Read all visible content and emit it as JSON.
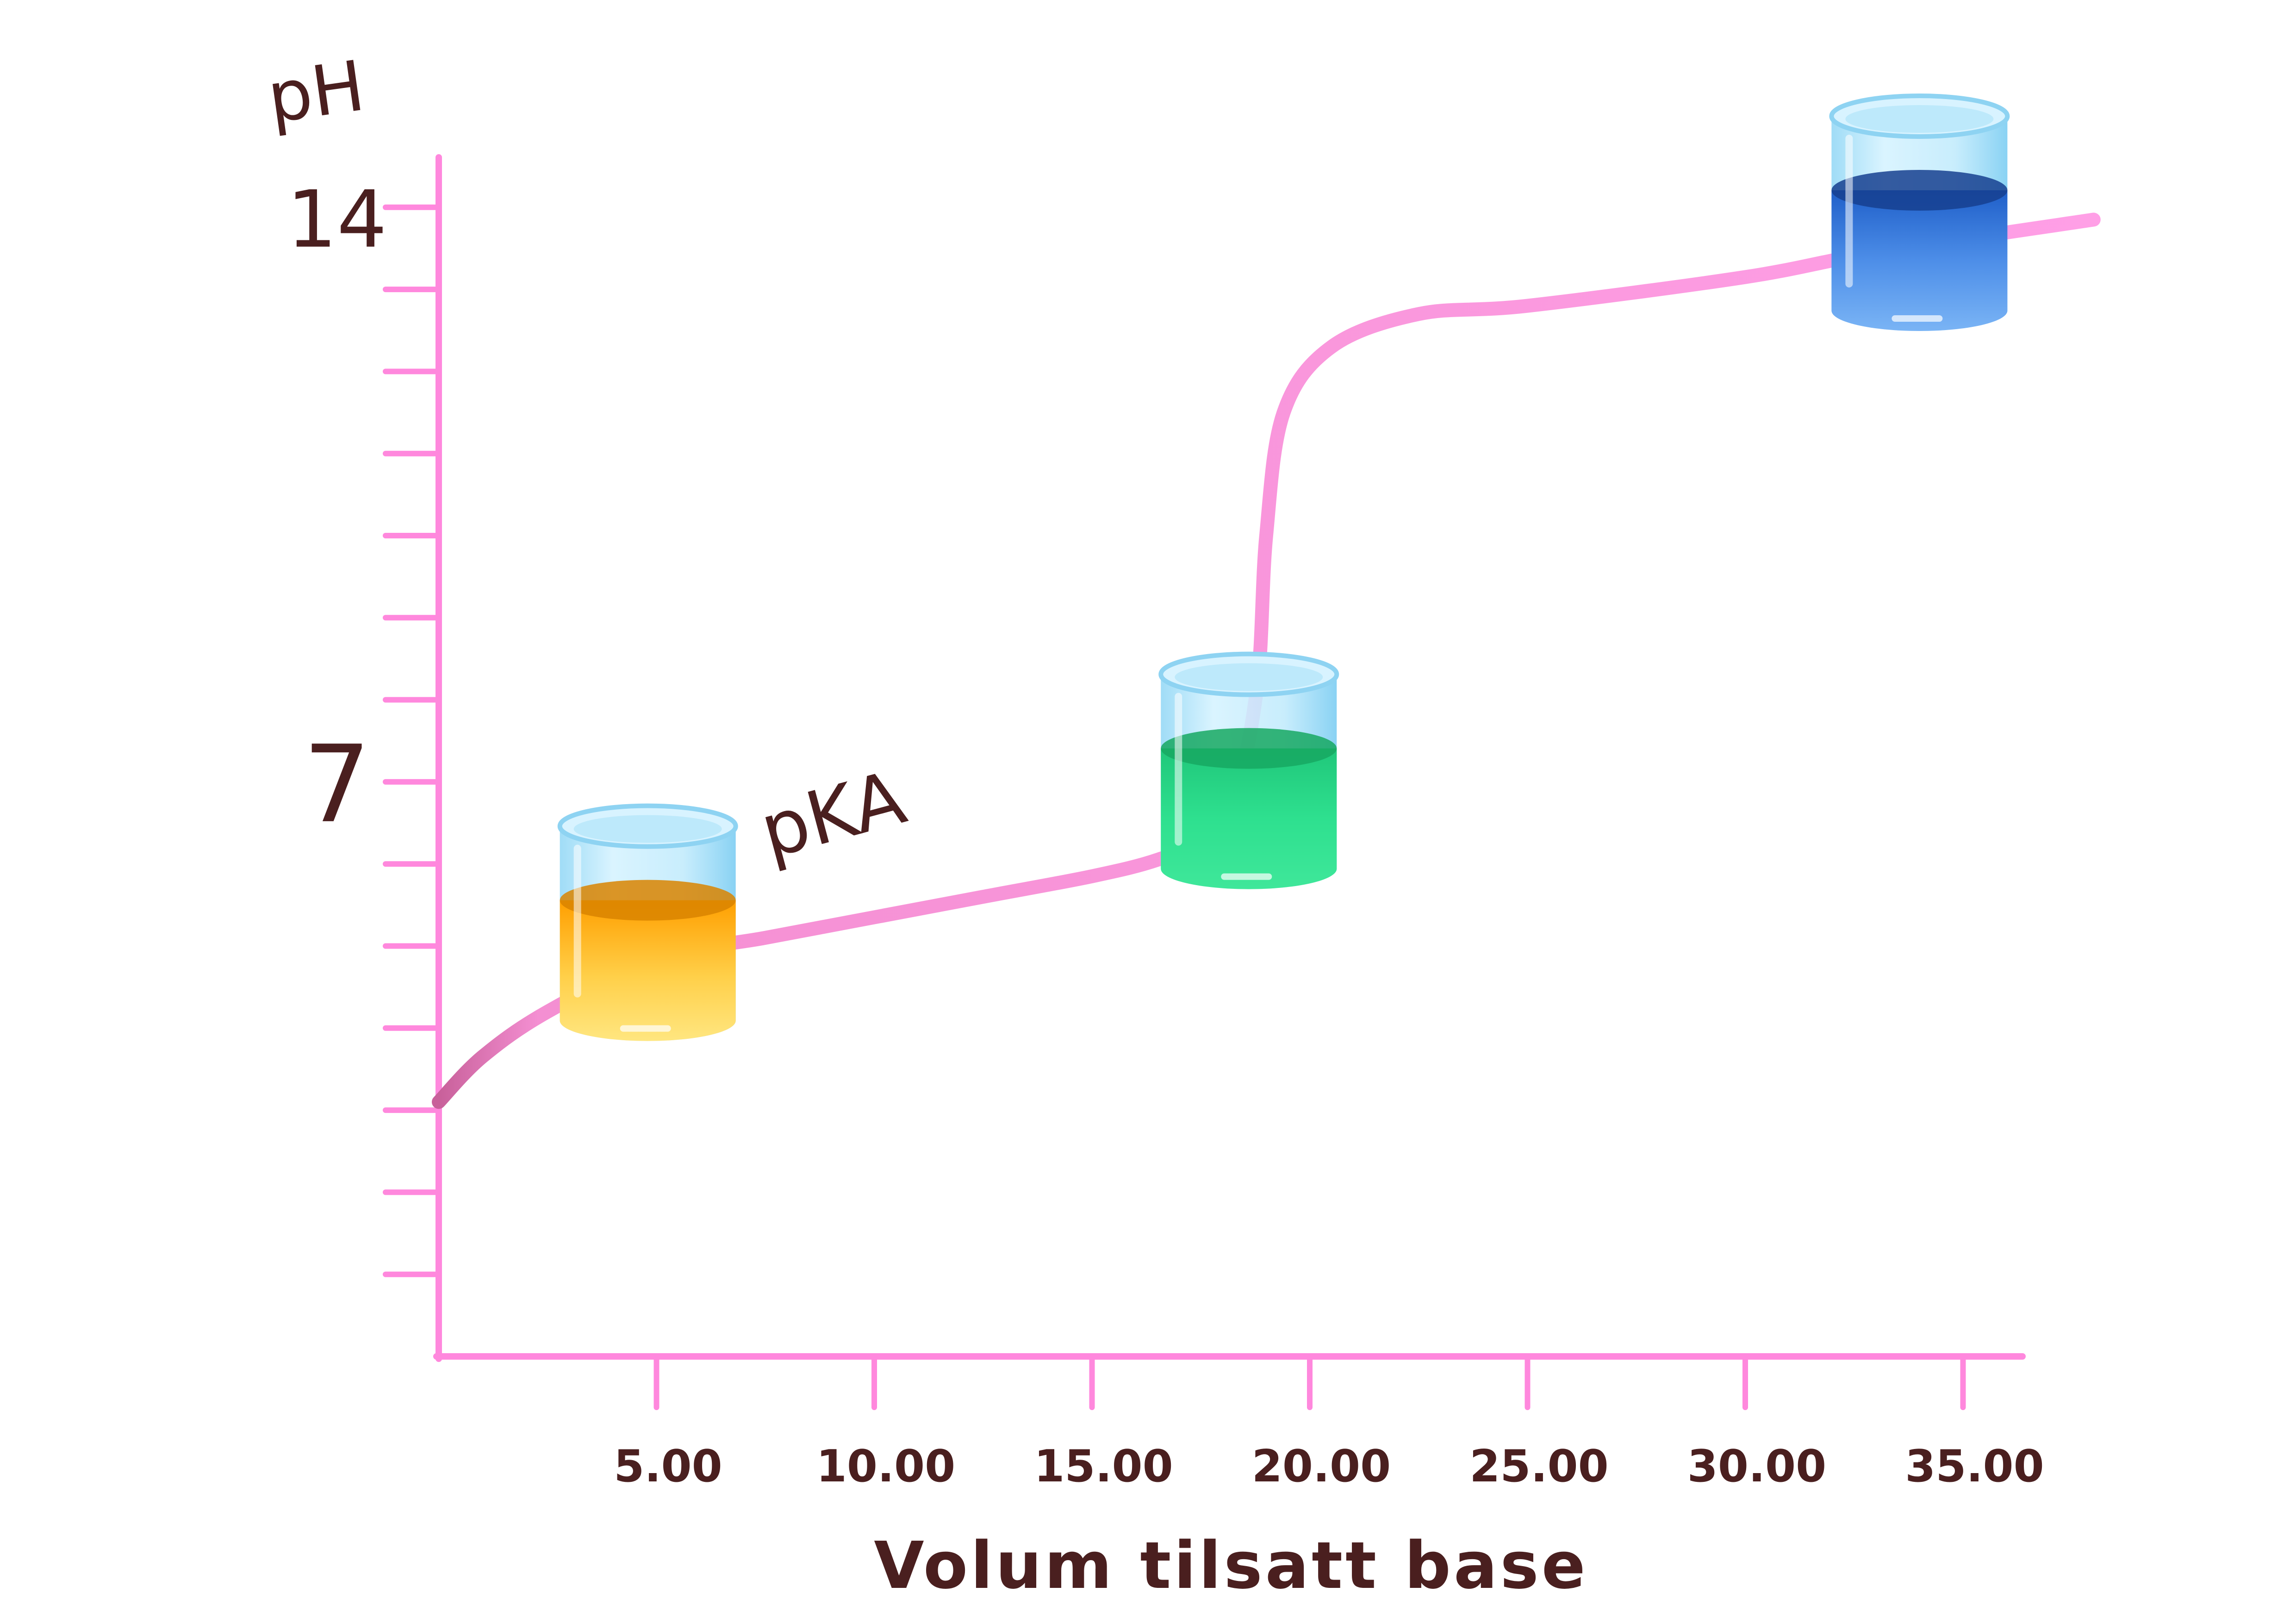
{
  "chart_data": {
    "type": "line",
    "title": "",
    "xlabel": "Volum tilsatt base",
    "ylabel": "pH",
    "xlim": [
      0,
      36.5
    ],
    "ylim": [
      0,
      14.5
    ],
    "x_ticks": [
      5,
      10,
      15,
      20,
      25,
      30,
      35
    ],
    "x_tick_labels": [
      "5.00",
      "10.00",
      "15.00",
      "20.00",
      "25.00",
      "30.00",
      "35.00"
    ],
    "y_ticks": [
      1,
      2,
      3,
      4,
      5,
      6,
      7,
      8,
      9,
      10,
      11,
      12,
      13,
      14
    ],
    "y_tick_labels_shown": [
      {
        "value": 7,
        "label": "7"
      },
      {
        "value": 14,
        "label": "14"
      }
    ],
    "grid": false,
    "series": [
      {
        "color": "#ff9ce6",
        "points": [
          [
            0,
            3.1
          ],
          [
            1,
            3.65
          ],
          [
            2.5,
            4.2
          ],
          [
            5,
            4.85
          ],
          [
            7.5,
            5.1
          ],
          [
            10,
            5.35
          ],
          [
            12.5,
            5.6
          ],
          [
            15,
            5.85
          ],
          [
            16.5,
            6.05
          ],
          [
            17.5,
            6.3
          ],
          [
            18.3,
            6.9
          ],
          [
            18.8,
            8.2
          ],
          [
            19,
            10.0
          ],
          [
            19.4,
            11.5
          ],
          [
            20.5,
            12.3
          ],
          [
            22.5,
            12.7
          ],
          [
            25,
            12.8
          ],
          [
            30,
            13.15
          ],
          [
            33,
            13.45
          ],
          [
            38,
            13.85
          ]
        ]
      }
    ],
    "annotations": [
      {
        "text": "pKA",
        "x": 9.2,
        "y": 6.3
      }
    ],
    "indicator_beakers": [
      {
        "x": 4.8,
        "y": 5.05,
        "liquid_color": "#ffc733"
      },
      {
        "x": 18.6,
        "y": 6.9,
        "liquid_color": "#2ddc8d"
      },
      {
        "x": 34.0,
        "y": 13.7,
        "liquid_color": "#4a90e8"
      }
    ]
  }
}
